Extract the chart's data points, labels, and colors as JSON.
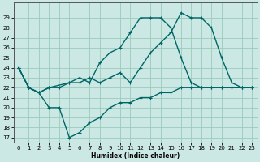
{
  "xlabel": "Humidex (Indice chaleur)",
  "bg_color": "#cce8e4",
  "grid_color": "#99ccbb",
  "line_color": "#006666",
  "xlim": [
    -0.5,
    23.5
  ],
  "ylim": [
    16.5,
    30.5
  ],
  "yticks": [
    17,
    18,
    19,
    20,
    21,
    22,
    23,
    24,
    25,
    26,
    27,
    28,
    29
  ],
  "xticks": [
    0,
    1,
    2,
    3,
    4,
    5,
    6,
    7,
    8,
    9,
    10,
    11,
    12,
    13,
    14,
    15,
    16,
    17,
    18,
    19,
    20,
    21,
    22,
    23
  ],
  "line1_x": [
    0,
    1,
    2,
    3,
    4,
    5,
    6,
    7,
    8,
    9,
    10,
    11,
    12,
    13,
    14,
    15,
    16,
    17,
    18,
    19,
    20,
    21,
    22,
    23
  ],
  "line1_y": [
    24,
    22,
    21.5,
    22,
    22,
    22.5,
    22.5,
    23,
    22.5,
    23,
    23.5,
    22.5,
    24,
    25.5,
    26.5,
    27.5,
    29.5,
    29,
    29,
    28,
    25,
    22.5,
    22,
    22
  ],
  "line2_x": [
    0,
    1,
    2,
    3,
    4,
    5,
    6,
    7,
    8,
    9,
    10,
    11,
    12,
    13,
    14,
    15,
    16,
    17,
    18,
    19,
    20,
    21,
    22,
    23
  ],
  "line2_y": [
    24,
    22,
    21.5,
    20,
    20,
    17,
    17.5,
    18.5,
    19,
    20,
    20.5,
    20.5,
    21,
    21,
    21.5,
    21.5,
    22,
    22,
    22,
    22,
    22,
    22,
    22,
    22
  ],
  "line3_x": [
    0,
    1,
    2,
    3,
    5,
    6,
    7,
    8,
    9,
    10,
    11,
    12,
    13,
    14,
    15,
    16,
    17,
    18,
    19,
    20,
    21,
    22,
    23
  ],
  "line3_y": [
    24,
    22,
    21.5,
    22,
    22.5,
    23,
    22.5,
    24.5,
    25.5,
    26,
    27.5,
    29,
    29,
    29,
    28,
    25,
    22.5,
    22,
    22,
    22,
    22,
    22,
    22
  ],
  "marker": "+",
  "markersize": 3,
  "linewidth": 1.0
}
